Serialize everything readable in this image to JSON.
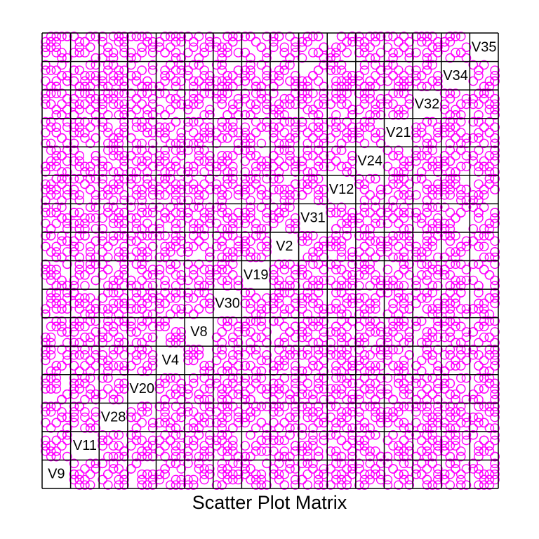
{
  "chart_data": {
    "type": "scatter",
    "subtype": "scatter-plot-matrix",
    "title": "Scatter Plot Matrix",
    "layout": "lower diagonal runs from bottom-left to top-right",
    "marker": {
      "shape": "open-circle",
      "color": "#ff00ff"
    },
    "diagonal_color": "#000000",
    "grid": "panel-borders",
    "variables": [
      "V9",
      "V11",
      "V28",
      "V20",
      "V4",
      "V8",
      "V30",
      "V19",
      "V2",
      "V31",
      "V12",
      "V24",
      "V21",
      "V32",
      "V34",
      "V35"
    ],
    "axis_range": [
      1,
      5
    ],
    "n_observations": 16,
    "values": [
      [
        1,
        3,
        5,
        2,
        4,
        1,
        3,
        5,
        2,
        4,
        1,
        3,
        5,
        2,
        4,
        3
      ],
      [
        2,
        4,
        1,
        3,
        5,
        3,
        1,
        4,
        2,
        5,
        4,
        2,
        5,
        1,
        3,
        1
      ],
      [
        5,
        2,
        3,
        1,
        4,
        4,
        2,
        1,
        5,
        3,
        2,
        5,
        1,
        4,
        3,
        5
      ],
      [
        3,
        3,
        2,
        5,
        1,
        4,
        5,
        2,
        3,
        1,
        5,
        4,
        2,
        3,
        1,
        4
      ],
      [
        4,
        1,
        4,
        4,
        2,
        5,
        2,
        3,
        1,
        5,
        3,
        1,
        4,
        5,
        2,
        2
      ],
      [
        1,
        5,
        3,
        2,
        5,
        2,
        4,
        1,
        4,
        3,
        2,
        5,
        3,
        1,
        4,
        5
      ],
      [
        2,
        2,
        5,
        4,
        3,
        1,
        5,
        4,
        3,
        2,
        1,
        4,
        2,
        5,
        3,
        3
      ],
      [
        5,
        4,
        1,
        3,
        2,
        3,
        1,
        5,
        4,
        2,
        4,
        3,
        5,
        2,
        1,
        1
      ],
      [
        3,
        1,
        4,
        5,
        1,
        5,
        3,
        2,
        5,
        4,
        3,
        1,
        4,
        2,
        5,
        2
      ],
      [
        4,
        5,
        2,
        1,
        3,
        2,
        4,
        3,
        1,
        5,
        5,
        2,
        1,
        4,
        3,
        4
      ],
      [
        1,
        3,
        3,
        4,
        5,
        4,
        2,
        5,
        2,
        1,
        3,
        5,
        2,
        3,
        4,
        5
      ],
      [
        2,
        2,
        5,
        2,
        4,
        1,
        5,
        1,
        3,
        4,
        2,
        4,
        3,
        5,
        1,
        3
      ],
      [
        5,
        4,
        1,
        5,
        2,
        3,
        3,
        4,
        4,
        2,
        1,
        3,
        5,
        1,
        2,
        4
      ],
      [
        3,
        5,
        4,
        3,
        1,
        5,
        1,
        2,
        5,
        3,
        4,
        2,
        4,
        3,
        5,
        1
      ],
      [
        4,
        1,
        2,
        1,
        3,
        2,
        4,
        3,
        1,
        5,
        5,
        1,
        2,
        4,
        3,
        2
      ],
      [
        2,
        3,
        5,
        4,
        5,
        4,
        2,
        5,
        3,
        1,
        3,
        4,
        1,
        5,
        2,
        5
      ]
    ]
  }
}
